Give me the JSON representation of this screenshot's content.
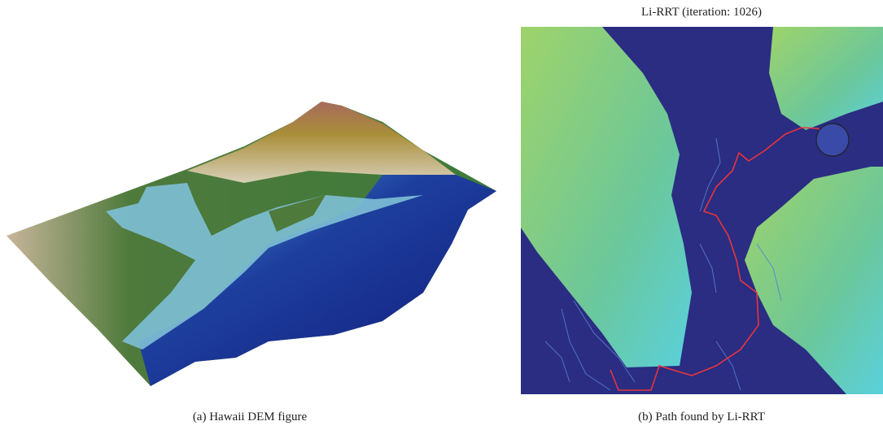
{
  "figure": {
    "panels": [
      {
        "caption": "(a)  Hawaii DEM figure"
      },
      {
        "title": "Li-RRT (iteration: 1026)",
        "caption": "(b)  Path found by Li-RRT"
      }
    ]
  }
}
